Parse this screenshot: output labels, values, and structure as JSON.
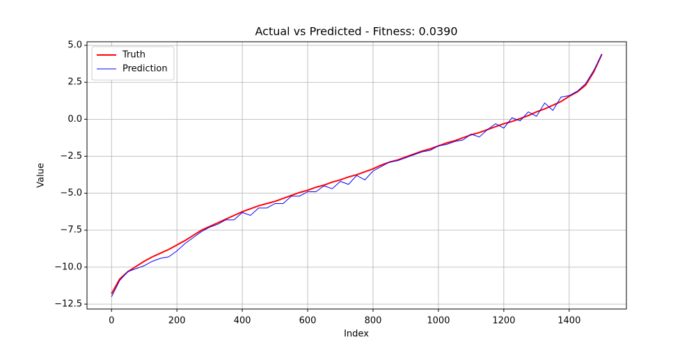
{
  "chart_data": {
    "type": "line",
    "title": "Actual vs Predicted - Fitness: 0.0390",
    "x_label": "Index",
    "y_label": "Value",
    "x": [
      0,
      25,
      50,
      75,
      100,
      125,
      150,
      175,
      200,
      225,
      250,
      275,
      300,
      325,
      350,
      375,
      400,
      425,
      450,
      475,
      500,
      525,
      550,
      575,
      600,
      625,
      650,
      675,
      700,
      725,
      750,
      775,
      800,
      825,
      850,
      875,
      900,
      925,
      950,
      975,
      1000,
      1025,
      1050,
      1075,
      1100,
      1125,
      1150,
      1175,
      1200,
      1225,
      1250,
      1275,
      1300,
      1325,
      1350,
      1375,
      1400,
      1425,
      1450,
      1475,
      1500
    ],
    "series": [
      {
        "name": "Truth",
        "color": "#ff0000",
        "width": 2,
        "values": [
          -11.8,
          -10.8,
          -10.3,
          -9.95,
          -9.6,
          -9.3,
          -9.05,
          -8.8,
          -8.5,
          -8.2,
          -7.85,
          -7.5,
          -7.25,
          -7.0,
          -6.75,
          -6.5,
          -6.25,
          -6.05,
          -5.85,
          -5.7,
          -5.55,
          -5.35,
          -5.15,
          -4.95,
          -4.8,
          -4.6,
          -4.45,
          -4.25,
          -4.1,
          -3.9,
          -3.75,
          -3.55,
          -3.35,
          -3.1,
          -2.9,
          -2.75,
          -2.55,
          -2.35,
          -2.15,
          -2.0,
          -1.8,
          -1.6,
          -1.45,
          -1.25,
          -1.05,
          -0.9,
          -0.7,
          -0.5,
          -0.3,
          -0.15,
          0.05,
          0.25,
          0.5,
          0.7,
          0.95,
          1.2,
          1.55,
          1.85,
          2.3,
          3.2,
          4.4
        ]
      },
      {
        "name": "Prediction",
        "color": "#0000ff",
        "width": 1,
        "values": [
          -12.0,
          -10.9,
          -10.3,
          -10.1,
          -9.9,
          -9.6,
          -9.4,
          -9.3,
          -8.9,
          -8.4,
          -8.0,
          -7.6,
          -7.3,
          -7.1,
          -6.8,
          -6.8,
          -6.3,
          -6.5,
          -6.0,
          -6.0,
          -5.7,
          -5.7,
          -5.2,
          -5.2,
          -4.9,
          -4.9,
          -4.5,
          -4.7,
          -4.2,
          -4.4,
          -3.8,
          -4.1,
          -3.5,
          -3.2,
          -2.9,
          -2.8,
          -2.6,
          -2.4,
          -2.2,
          -2.1,
          -1.8,
          -1.7,
          -1.5,
          -1.4,
          -1.0,
          -1.2,
          -0.7,
          -0.3,
          -0.6,
          0.1,
          -0.1,
          0.5,
          0.2,
          1.1,
          0.6,
          1.5,
          1.6,
          1.9,
          2.4,
          3.3,
          4.4
        ]
      }
    ],
    "xlim": [
      -75,
      1575
    ],
    "ylim": [
      -12.83,
      5.24
    ],
    "xticks": [
      0,
      200,
      400,
      600,
      800,
      1000,
      1200,
      1400
    ],
    "yticks": [
      {
        "value": -12.5,
        "label": "−12.5"
      },
      {
        "value": -10,
        "label": "−10.0"
      },
      {
        "value": -7.5,
        "label": "−7.5"
      },
      {
        "value": -5,
        "label": "−5.0"
      },
      {
        "value": -2.5,
        "label": "−2.5"
      },
      {
        "value": 0,
        "label": "0.0"
      },
      {
        "value": 2.5,
        "label": "2.5"
      },
      {
        "value": 5,
        "label": "5.0"
      }
    ],
    "grid": true,
    "legend": "upper-left"
  }
}
